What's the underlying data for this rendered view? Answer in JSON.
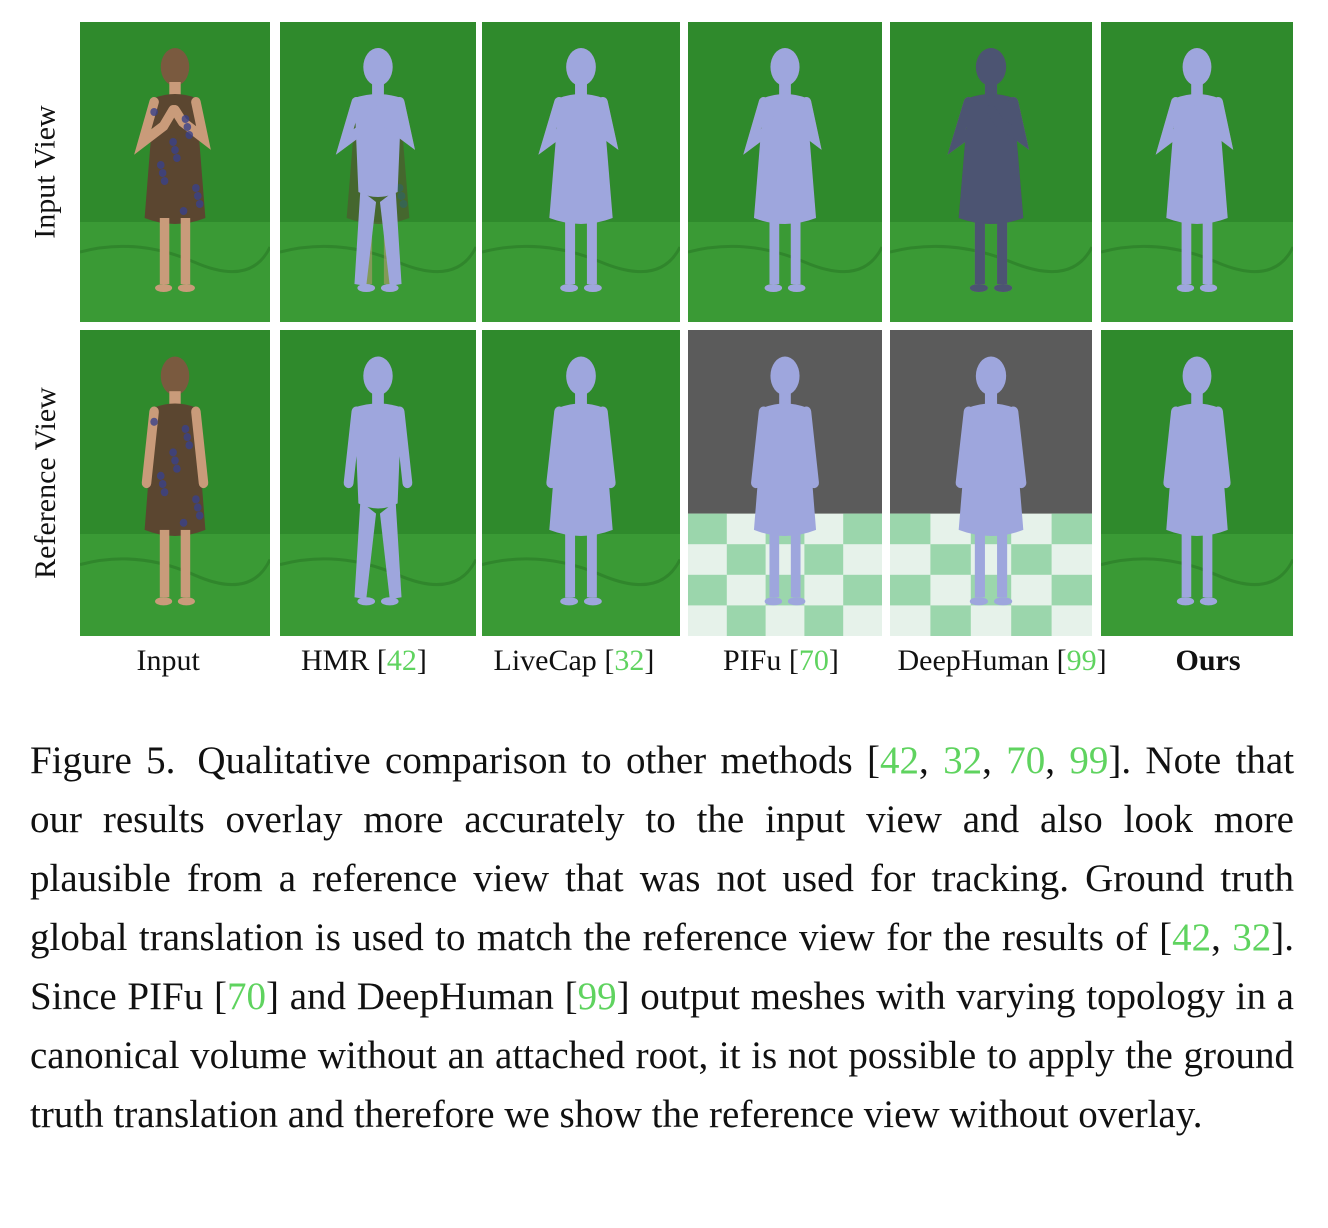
{
  "row_labels": [
    "Input View",
    "Reference View"
  ],
  "columns": [
    {
      "label": "Input",
      "ref": ""
    },
    {
      "label": "HMR",
      "ref": "42"
    },
    {
      "label": "LiveCap",
      "ref": "32"
    },
    {
      "label": "PIFu",
      "ref": "70"
    },
    {
      "label": "DeepHuman",
      "ref": "99"
    },
    {
      "label": "Ours",
      "ref": ""
    }
  ],
  "caption": {
    "label": "Figure 5.",
    "segments": [
      {
        "t": "Qualitative comparison to other methods [",
        "ref": false
      },
      {
        "t": "42",
        "ref": true
      },
      {
        "t": ", ",
        "ref": false
      },
      {
        "t": "32",
        "ref": true
      },
      {
        "t": ", ",
        "ref": false
      },
      {
        "t": "70",
        "ref": true
      },
      {
        "t": ", ",
        "ref": false
      },
      {
        "t": "99",
        "ref": true
      },
      {
        "t": "]. Note that our results overlay more accurately to the input view and also look more plausible from a reference view that was not used for tracking. Ground truth global translation is used to match the reference view for the results of [",
        "ref": false
      },
      {
        "t": "42",
        "ref": true
      },
      {
        "t": ", ",
        "ref": false
      },
      {
        "t": "32",
        "ref": true
      },
      {
        "t": "]. Since PIFu [",
        "ref": false
      },
      {
        "t": "70",
        "ref": true
      },
      {
        "t": "] and DeepHuman [",
        "ref": false
      },
      {
        "t": "99",
        "ref": true
      },
      {
        "t": "] output meshes with varying topology in a canonical volume without an attached root, it is not possible to apply the ground truth translation and therefore we show the reference view without overlay.",
        "ref": false
      }
    ]
  },
  "colors": {
    "green_screen": "#2f8a2c",
    "mesh": "#9ea6dd",
    "mesh_dark": "#4c5472",
    "dress": "#5b4630",
    "skin": "#c99b7a",
    "ref_link": "#5fd35f",
    "gray_bg": "#5b5b5b"
  }
}
